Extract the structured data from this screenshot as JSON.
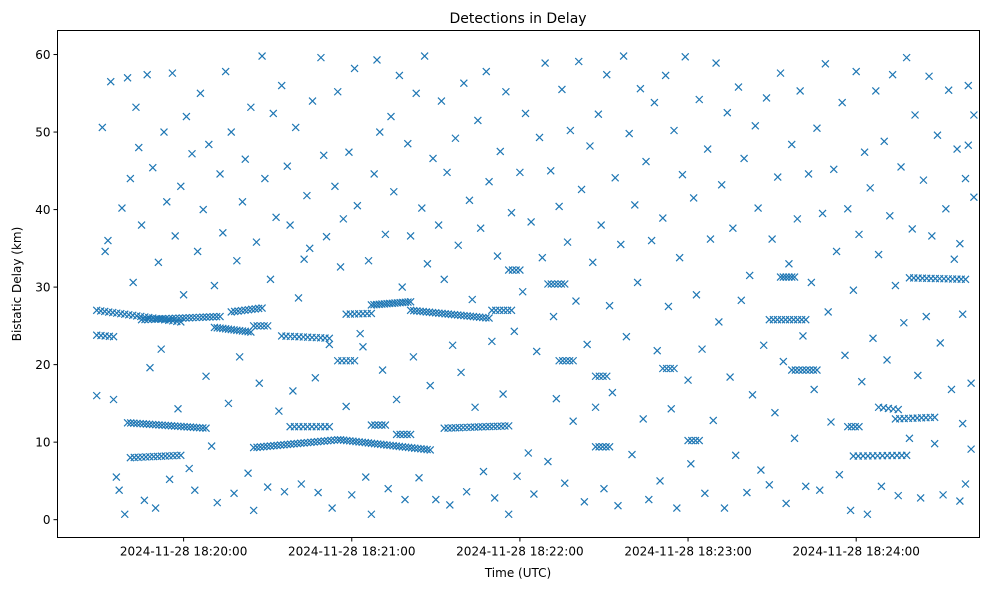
{
  "chart_data": {
    "type": "scatter",
    "title": "Detections in Delay",
    "xlabel": "Time (UTC)",
    "ylabel": "Bistatic Delay (km)",
    "x_unit": "seconds since 2024-11-28 18:19:00",
    "xlim": [
      15,
      344
    ],
    "ylim": [
      -2.3,
      63.1
    ],
    "grid": false,
    "marker": "x",
    "color": "#1f77b4",
    "xticks": [
      {
        "value": 60,
        "label": "2024-11-28 18:20:00"
      },
      {
        "value": 120,
        "label": "2024-11-28 18:21:00"
      },
      {
        "value": 180,
        "label": "2024-11-28 18:22:00"
      },
      {
        "value": 240,
        "label": "2024-11-28 18:23:00"
      },
      {
        "value": 300,
        "label": "2024-11-28 18:24:00"
      }
    ],
    "yticks": [
      {
        "value": 0,
        "label": "0"
      },
      {
        "value": 10,
        "label": "10"
      },
      {
        "value": 20,
        "label": "20"
      },
      {
        "value": 30,
        "label": "30"
      },
      {
        "value": 40,
        "label": "40"
      },
      {
        "value": 50,
        "label": "50"
      },
      {
        "value": 60,
        "label": "60"
      }
    ],
    "tracks": [
      {
        "t0": 29,
        "t1": 59,
        "d0": 27.0,
        "d1": 25.5,
        "n": 22
      },
      {
        "t0": 29,
        "t1": 35,
        "d0": 23.8,
        "d1": 23.6,
        "n": 5
      },
      {
        "t0": 40,
        "t1": 68,
        "d0": 12.5,
        "d1": 11.8,
        "n": 26
      },
      {
        "t0": 41,
        "t1": 59,
        "d0": 8.0,
        "d1": 8.3,
        "n": 14
      },
      {
        "t0": 45,
        "t1": 73,
        "d0": 25.8,
        "d1": 26.2,
        "n": 24
      },
      {
        "t0": 71,
        "t1": 84,
        "d0": 24.8,
        "d1": 24.2,
        "n": 14
      },
      {
        "t0": 77,
        "t1": 88,
        "d0": 26.8,
        "d1": 27.3,
        "n": 10
      },
      {
        "t0": 85,
        "t1": 90,
        "d0": 25.0,
        "d1": 25.0,
        "n": 5
      },
      {
        "t0": 95,
        "t1": 112,
        "d0": 23.7,
        "d1": 23.4,
        "n": 12
      },
      {
        "t0": 85,
        "t1": 115,
        "d0": 9.3,
        "d1": 10.3,
        "n": 26
      },
      {
        "t0": 98,
        "t1": 112,
        "d0": 12.0,
        "d1": 12.0,
        "n": 10
      },
      {
        "t0": 115,
        "t1": 121,
        "d0": 20.5,
        "d1": 20.5,
        "n": 5
      },
      {
        "t0": 118,
        "t1": 127,
        "d0": 26.5,
        "d1": 26.6,
        "n": 7
      },
      {
        "t0": 127,
        "t1": 141,
        "d0": 27.7,
        "d1": 28.1,
        "n": 16
      },
      {
        "t0": 141,
        "t1": 169,
        "d0": 27.0,
        "d1": 26.0,
        "n": 26
      },
      {
        "t0": 116,
        "t1": 148,
        "d0": 10.3,
        "d1": 9.0,
        "n": 30
      },
      {
        "t0": 127,
        "t1": 132,
        "d0": 12.2,
        "d1": 12.2,
        "n": 5
      },
      {
        "t0": 136,
        "t1": 141,
        "d0": 11.0,
        "d1": 11.0,
        "n": 5
      },
      {
        "t0": 153,
        "t1": 176,
        "d0": 11.8,
        "d1": 12.1,
        "n": 18
      },
      {
        "t0": 170,
        "t1": 177,
        "d0": 27.0,
        "d1": 27.0,
        "n": 6
      },
      {
        "t0": 176,
        "t1": 180,
        "d0": 32.2,
        "d1": 32.2,
        "n": 4
      },
      {
        "t0": 190,
        "t1": 196,
        "d0": 30.4,
        "d1": 30.4,
        "n": 6
      },
      {
        "t0": 194,
        "t1": 199,
        "d0": 20.5,
        "d1": 20.5,
        "n": 5
      },
      {
        "t0": 207,
        "t1": 211,
        "d0": 18.5,
        "d1": 18.5,
        "n": 4
      },
      {
        "t0": 207,
        "t1": 212,
        "d0": 9.4,
        "d1": 9.4,
        "n": 5
      },
      {
        "t0": 231,
        "t1": 235,
        "d0": 19.5,
        "d1": 19.5,
        "n": 4
      },
      {
        "t0": 240,
        "t1": 244,
        "d0": 10.2,
        "d1": 10.2,
        "n": 4
      },
      {
        "t0": 269,
        "t1": 282,
        "d0": 25.8,
        "d1": 25.8,
        "n": 10
      },
      {
        "t0": 273,
        "t1": 278,
        "d0": 31.3,
        "d1": 31.3,
        "n": 6
      },
      {
        "t0": 277,
        "t1": 286,
        "d0": 19.3,
        "d1": 19.3,
        "n": 8
      },
      {
        "t0": 297,
        "t1": 301,
        "d0": 12.0,
        "d1": 12.0,
        "n": 4
      },
      {
        "t0": 299,
        "t1": 318,
        "d0": 8.2,
        "d1": 8.3,
        "n": 12
      },
      {
        "t0": 314,
        "t1": 328,
        "d0": 13.0,
        "d1": 13.2,
        "n": 10
      },
      {
        "t0": 319,
        "t1": 339,
        "d0": 31.2,
        "d1": 31.0,
        "n": 14
      },
      {
        "t0": 308,
        "t1": 315,
        "d0": 14.5,
        "d1": 14.2,
        "n": 5
      }
    ],
    "points": [
      [
        29,
        16
      ],
      [
        31,
        50.6
      ],
      [
        32,
        34.6
      ],
      [
        33,
        36
      ],
      [
        34,
        56.5
      ],
      [
        35,
        15.5
      ],
      [
        36,
        5.5
      ],
      [
        37,
        3.8
      ],
      [
        38,
        40.2
      ],
      [
        39,
        0.7
      ],
      [
        40,
        57
      ],
      [
        41,
        44
      ],
      [
        42,
        30.6
      ],
      [
        43,
        53.2
      ],
      [
        44,
        48
      ],
      [
        45,
        38
      ],
      [
        46,
        2.5
      ],
      [
        47,
        57.4
      ],
      [
        48,
        19.6
      ],
      [
        49,
        45.4
      ],
      [
        50,
        1.5
      ],
      [
        51,
        33.2
      ],
      [
        52,
        22
      ],
      [
        53,
        50
      ],
      [
        54,
        41
      ],
      [
        55,
        5.2
      ],
      [
        56,
        57.6
      ],
      [
        57,
        36.6
      ],
      [
        58,
        14.3
      ],
      [
        59,
        43
      ],
      [
        60,
        29
      ],
      [
        61,
        52
      ],
      [
        62,
        6.6
      ],
      [
        63,
        47.2
      ],
      [
        64,
        3.8
      ],
      [
        65,
        34.6
      ],
      [
        66,
        55
      ],
      [
        67,
        40
      ],
      [
        68,
        18.5
      ],
      [
        69,
        48.4
      ],
      [
        70,
        9.5
      ],
      [
        71,
        30.2
      ],
      [
        72,
        2.2
      ],
      [
        73,
        44.6
      ],
      [
        74,
        37
      ],
      [
        75,
        57.8
      ],
      [
        76,
        15
      ],
      [
        77,
        50
      ],
      [
        78,
        3.4
      ],
      [
        79,
        33.4
      ],
      [
        80,
        21
      ],
      [
        81,
        41
      ],
      [
        82,
        46.5
      ],
      [
        83,
        6
      ],
      [
        84,
        53.2
      ],
      [
        85,
        1.2
      ],
      [
        86,
        35.8
      ],
      [
        87,
        17.6
      ],
      [
        88,
        59.8
      ],
      [
        89,
        44
      ],
      [
        90,
        4.2
      ],
      [
        91,
        31
      ],
      [
        92,
        52.4
      ],
      [
        93,
        39
      ],
      [
        94,
        14
      ],
      [
        95,
        56
      ],
      [
        96,
        3.6
      ],
      [
        97,
        45.6
      ],
      [
        98,
        38
      ],
      [
        99,
        16.6
      ],
      [
        100,
        50.6
      ],
      [
        101,
        28.6
      ],
      [
        102,
        4.6
      ],
      [
        103,
        33.6
      ],
      [
        104,
        41.8
      ],
      [
        105,
        35
      ],
      [
        106,
        54
      ],
      [
        107,
        18.3
      ],
      [
        108,
        3.5
      ],
      [
        109,
        59.6
      ],
      [
        110,
        47
      ],
      [
        111,
        36.5
      ],
      [
        112,
        22.6
      ],
      [
        113,
        1.5
      ],
      [
        114,
        43
      ],
      [
        115,
        55.2
      ],
      [
        116,
        32.6
      ],
      [
        117,
        38.8
      ],
      [
        118,
        14.6
      ],
      [
        119,
        47.4
      ],
      [
        120,
        3.2
      ],
      [
        121,
        58.2
      ],
      [
        122,
        40.5
      ],
      [
        123,
        24
      ],
      [
        124,
        22.3
      ],
      [
        125,
        5.5
      ],
      [
        126,
        33.4
      ],
      [
        127,
        0.7
      ],
      [
        128,
        44.6
      ],
      [
        129,
        59.3
      ],
      [
        130,
        50
      ],
      [
        131,
        19.3
      ],
      [
        132,
        36.8
      ],
      [
        133,
        4
      ],
      [
        134,
        52
      ],
      [
        135,
        42.3
      ],
      [
        136,
        15.5
      ],
      [
        137,
        57.3
      ],
      [
        138,
        30
      ],
      [
        139,
        2.6
      ],
      [
        140,
        48.5
      ],
      [
        141,
        36.6
      ],
      [
        142,
        21
      ],
      [
        143,
        55
      ],
      [
        144,
        5.4
      ],
      [
        145,
        40.2
      ],
      [
        146,
        59.8
      ],
      [
        147,
        33
      ],
      [
        148,
        17.3
      ],
      [
        149,
        46.6
      ],
      [
        150,
        2.6
      ],
      [
        151,
        38
      ],
      [
        152,
        54
      ],
      [
        153,
        31
      ],
      [
        154,
        44.8
      ],
      [
        155,
        1.9
      ],
      [
        156,
        22.5
      ],
      [
        157,
        49.2
      ],
      [
        158,
        35.4
      ],
      [
        159,
        19
      ],
      [
        160,
        56.3
      ],
      [
        161,
        3.6
      ],
      [
        162,
        41.2
      ],
      [
        163,
        28.4
      ],
      [
        164,
        14.5
      ],
      [
        165,
        51.5
      ],
      [
        166,
        37.6
      ],
      [
        167,
        6.2
      ],
      [
        168,
        57.8
      ],
      [
        169,
        43.6
      ],
      [
        170,
        23
      ],
      [
        171,
        2.8
      ],
      [
        172,
        34
      ],
      [
        173,
        47.5
      ],
      [
        174,
        16.2
      ],
      [
        175,
        55.2
      ],
      [
        176,
        0.7
      ],
      [
        177,
        39.6
      ],
      [
        178,
        24.3
      ],
      [
        179,
        5.6
      ],
      [
        180,
        44.8
      ],
      [
        181,
        29.4
      ],
      [
        182,
        52.4
      ],
      [
        183,
        8.6
      ],
      [
        184,
        38.4
      ],
      [
        185,
        3.3
      ],
      [
        186,
        21.7
      ],
      [
        187,
        49.3
      ],
      [
        188,
        33.8
      ],
      [
        189,
        58.9
      ],
      [
        190,
        7.5
      ],
      [
        191,
        45
      ],
      [
        192,
        26.2
      ],
      [
        193,
        15.6
      ],
      [
        194,
        40.4
      ],
      [
        195,
        55.5
      ],
      [
        196,
        4.7
      ],
      [
        197,
        35.8
      ],
      [
        198,
        50.2
      ],
      [
        199,
        12.7
      ],
      [
        200,
        28.2
      ],
      [
        201,
        59.1
      ],
      [
        202,
        42.6
      ],
      [
        203,
        2.3
      ],
      [
        204,
        22.6
      ],
      [
        205,
        48.2
      ],
      [
        206,
        33.2
      ],
      [
        207,
        14.5
      ],
      [
        208,
        52.3
      ],
      [
        209,
        38
      ],
      [
        210,
        4
      ],
      [
        211,
        57.4
      ],
      [
        212,
        27.6
      ],
      [
        213,
        16.4
      ],
      [
        214,
        44.1
      ],
      [
        215,
        1.8
      ],
      [
        216,
        35.5
      ],
      [
        217,
        59.8
      ],
      [
        218,
        23.6
      ],
      [
        219,
        49.8
      ],
      [
        220,
        8.4
      ],
      [
        221,
        40.6
      ],
      [
        222,
        30.6
      ],
      [
        223,
        55.6
      ],
      [
        224,
        13
      ],
      [
        225,
        46.2
      ],
      [
        226,
        2.6
      ],
      [
        227,
        36
      ],
      [
        228,
        53.8
      ],
      [
        229,
        21.8
      ],
      [
        230,
        5
      ],
      [
        231,
        38.9
      ],
      [
        232,
        57.3
      ],
      [
        233,
        27.5
      ],
      [
        234,
        14.3
      ],
      [
        235,
        50.2
      ],
      [
        236,
        1.5
      ],
      [
        237,
        33.8
      ],
      [
        238,
        44.5
      ],
      [
        239,
        59.7
      ],
      [
        240,
        18
      ],
      [
        241,
        7.2
      ],
      [
        242,
        41.5
      ],
      [
        243,
        29
      ],
      [
        244,
        54.2
      ],
      [
        245,
        22
      ],
      [
        246,
        3.4
      ],
      [
        247,
        47.8
      ],
      [
        248,
        36.2
      ],
      [
        249,
        12.8
      ],
      [
        250,
        58.9
      ],
      [
        251,
        25.5
      ],
      [
        252,
        43.2
      ],
      [
        253,
        1.5
      ],
      [
        254,
        52.5
      ],
      [
        255,
        18.4
      ],
      [
        256,
        37.6
      ],
      [
        257,
        8.3
      ],
      [
        258,
        55.8
      ],
      [
        259,
        28.3
      ],
      [
        260,
        46.6
      ],
      [
        261,
        3.5
      ],
      [
        262,
        31.5
      ],
      [
        263,
        16.1
      ],
      [
        264,
        50.8
      ],
      [
        265,
        40.2
      ],
      [
        266,
        6.4
      ],
      [
        267,
        22.5
      ],
      [
        268,
        54.4
      ],
      [
        269,
        4.5
      ],
      [
        270,
        36.2
      ],
      [
        271,
        13.8
      ],
      [
        272,
        44.2
      ],
      [
        273,
        57.6
      ],
      [
        274,
        20.4
      ],
      [
        275,
        2.1
      ],
      [
        276,
        33
      ],
      [
        277,
        48.4
      ],
      [
        278,
        10.5
      ],
      [
        279,
        38.8
      ],
      [
        280,
        55.3
      ],
      [
        281,
        23.7
      ],
      [
        282,
        4.3
      ],
      [
        283,
        44.6
      ],
      [
        284,
        30.6
      ],
      [
        285,
        16.8
      ],
      [
        286,
        50.5
      ],
      [
        287,
        3.8
      ],
      [
        288,
        39.5
      ],
      [
        289,
        58.8
      ],
      [
        290,
        26.8
      ],
      [
        291,
        12.6
      ],
      [
        292,
        45.2
      ],
      [
        293,
        34.6
      ],
      [
        294,
        5.8
      ],
      [
        295,
        53.8
      ],
      [
        296,
        21.2
      ],
      [
        297,
        40.1
      ],
      [
        298,
        1.2
      ],
      [
        299,
        29.6
      ],
      [
        300,
        57.8
      ],
      [
        301,
        36.8
      ],
      [
        302,
        17.8
      ],
      [
        303,
        47.4
      ],
      [
        304,
        0.7
      ],
      [
        305,
        42.8
      ],
      [
        306,
        23.4
      ],
      [
        307,
        55.3
      ],
      [
        308,
        34.2
      ],
      [
        309,
        4.3
      ],
      [
        310,
        48.8
      ],
      [
        311,
        20.6
      ],
      [
        312,
        39.2
      ],
      [
        313,
        57.4
      ],
      [
        314,
        30.2
      ],
      [
        315,
        3.1
      ],
      [
        316,
        45.5
      ],
      [
        317,
        25.4
      ],
      [
        318,
        59.6
      ],
      [
        319,
        10.5
      ],
      [
        320,
        37.5
      ],
      [
        321,
        52.2
      ],
      [
        322,
        18.6
      ],
      [
        323,
        2.8
      ],
      [
        324,
        43.8
      ],
      [
        325,
        26.2
      ],
      [
        326,
        57.2
      ],
      [
        327,
        36.6
      ],
      [
        328,
        9.8
      ],
      [
        329,
        49.6
      ],
      [
        330,
        22.8
      ],
      [
        331,
        3.2
      ],
      [
        332,
        40.1
      ],
      [
        333,
        55.4
      ],
      [
        334,
        16.8
      ],
      [
        335,
        33.6
      ],
      [
        336,
        47.8
      ],
      [
        337,
        2.4
      ],
      [
        338,
        26.5
      ],
      [
        339,
        44
      ],
      [
        340,
        56
      ],
      [
        341,
        9.1
      ],
      [
        342,
        52.2
      ],
      [
        342,
        41.6
      ],
      [
        341,
        17.6
      ],
      [
        340,
        48.3
      ],
      [
        339,
        4.6
      ],
      [
        338,
        12.4
      ],
      [
        337,
        35.6
      ]
    ]
  }
}
